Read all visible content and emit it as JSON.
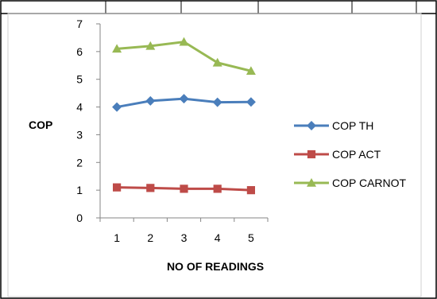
{
  "chart_data": {
    "type": "line",
    "title": "",
    "xlabel": "NO OF READINGS",
    "ylabel": "COP",
    "categories": [
      "1",
      "2",
      "3",
      "4",
      "5"
    ],
    "ylim": [
      0,
      7
    ],
    "yticks": [
      "0",
      "1",
      "2",
      "3",
      "4",
      "5",
      "6",
      "7"
    ],
    "grid": false,
    "legend": "right",
    "series": [
      {
        "name": "COP TH",
        "values": [
          4.0,
          4.22,
          4.3,
          4.17,
          4.18
        ],
        "color": "#4a7ebb",
        "marker": "diamond"
      },
      {
        "name": "COP ACT",
        "values": [
          1.1,
          1.08,
          1.05,
          1.05,
          1.0
        ],
        "color": "#be4b48",
        "marker": "square"
      },
      {
        "name": "COP CARNOT",
        "values": [
          6.1,
          6.2,
          6.35,
          5.6,
          5.3
        ],
        "color": "#98b954",
        "marker": "triangle"
      }
    ]
  }
}
